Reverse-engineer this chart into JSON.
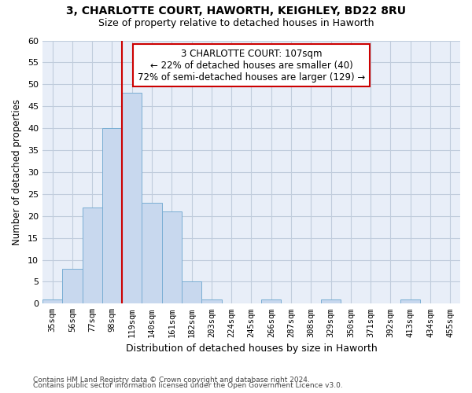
{
  "title_line1": "3, CHARLOTTE COURT, HAWORTH, KEIGHLEY, BD22 8RU",
  "title_line2": "Size of property relative to detached houses in Haworth",
  "xlabel": "Distribution of detached houses by size in Haworth",
  "ylabel": "Number of detached properties",
  "categories": [
    "35sqm",
    "56sqm",
    "77sqm",
    "98sqm",
    "119sqm",
    "140sqm",
    "161sqm",
    "182sqm",
    "203sqm",
    "224sqm",
    "245sqm",
    "266sqm",
    "287sqm",
    "308sqm",
    "329sqm",
    "350sqm",
    "371sqm",
    "392sqm",
    "413sqm",
    "434sqm",
    "455sqm"
  ],
  "values": [
    1,
    8,
    22,
    40,
    48,
    23,
    21,
    5,
    1,
    0,
    0,
    1,
    0,
    0,
    1,
    0,
    0,
    0,
    1,
    0,
    0
  ],
  "bar_color": "#c8d8ee",
  "bar_edge_color": "#7aaed4",
  "ylim": [
    0,
    60
  ],
  "yticks": [
    0,
    5,
    10,
    15,
    20,
    25,
    30,
    35,
    40,
    45,
    50,
    55,
    60
  ],
  "vline_color": "#cc0000",
  "vline_x": 3.5,
  "annotation_text": "3 CHARLOTTE COURT: 107sqm\n← 22% of detached houses are smaller (40)\n72% of semi-detached houses are larger (129) →",
  "annotation_box_facecolor": "#ffffff",
  "annotation_box_edgecolor": "#cc0000",
  "footer_line1": "Contains HM Land Registry data © Crown copyright and database right 2024.",
  "footer_line2": "Contains public sector information licensed under the Open Government Licence v3.0.",
  "background_color": "#ffffff",
  "plot_bg_color": "#e8eef8",
  "grid_color": "#c0ccdc"
}
